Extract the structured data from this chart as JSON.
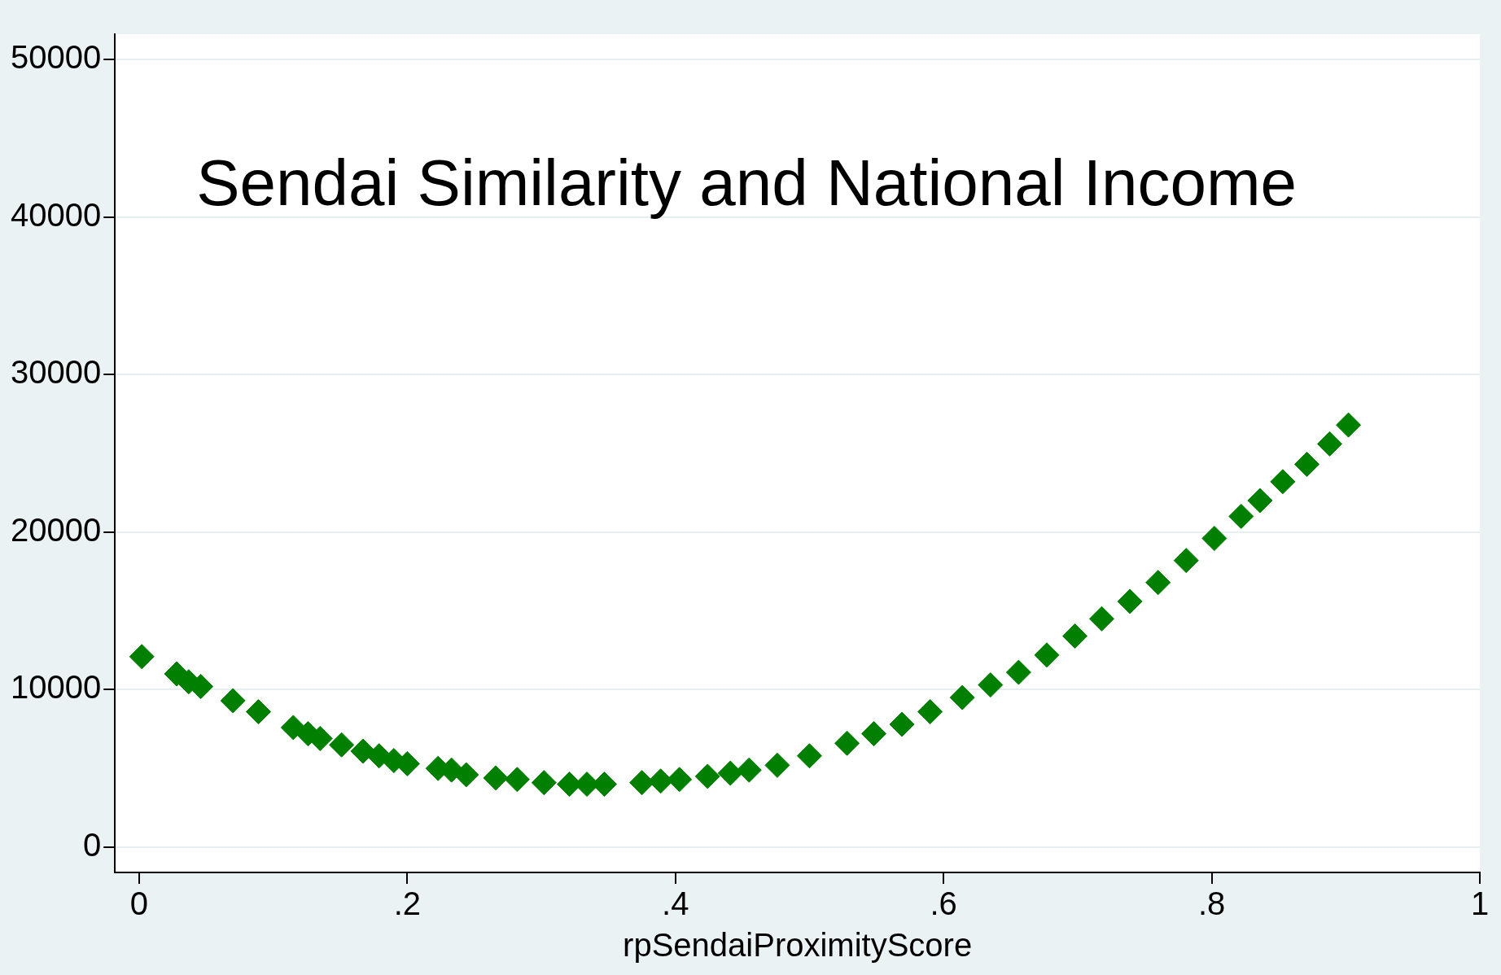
{
  "chart_data": {
    "type": "scatter",
    "title": "Sendai Similarity and National Income",
    "xlabel": "rpSendaiProximityScore",
    "x": [
      0.002,
      0.028,
      0.037,
      0.046,
      0.07,
      0.089,
      0.115,
      0.126,
      0.135,
      0.151,
      0.167,
      0.179,
      0.19,
      0.2,
      0.223,
      0.233,
      0.244,
      0.266,
      0.282,
      0.302,
      0.321,
      0.334,
      0.347,
      0.375,
      0.389,
      0.403,
      0.424,
      0.441,
      0.455,
      0.476,
      0.5,
      0.528,
      0.548,
      0.569,
      0.59,
      0.614,
      0.635,
      0.656,
      0.677,
      0.698,
      0.718,
      0.739,
      0.76,
      0.781,
      0.802,
      0.822,
      0.836,
      0.853,
      0.871,
      0.888,
      0.902
    ],
    "series": [
      {
        "color": "#007f00",
        "values": [
          12100,
          11000,
          10500,
          10200,
          9300,
          8600,
          7600,
          7200,
          6900,
          6500,
          6100,
          5800,
          5500,
          5300,
          5000,
          4900,
          4600,
          4400,
          4300,
          4100,
          4000,
          4000,
          4000,
          4100,
          4200,
          4300,
          4500,
          4700,
          4900,
          5200,
          5800,
          6600,
          7200,
          7800,
          8600,
          9500,
          10300,
          11100,
          12200,
          13400,
          14500,
          15600,
          16800,
          18200,
          19600,
          21000,
          22000,
          23200,
          24300,
          25600,
          26800
        ]
      }
    ],
    "xlim": [
      -0.018,
      1
    ],
    "ylim": [
      -1600,
      51600
    ],
    "xticks": [
      0,
      {
        "value": 0.2,
        "label": ".2"
      },
      {
        "value": 0.4,
        "label": ".4"
      },
      {
        "value": 0.6,
        "label": ".6"
      },
      {
        "value": 0.8,
        "label": ".8"
      },
      1
    ],
    "yticks": [
      0,
      10000,
      20000,
      30000,
      40000,
      50000
    ],
    "grid": "y",
    "legend": false,
    "marker": "diamond"
  }
}
